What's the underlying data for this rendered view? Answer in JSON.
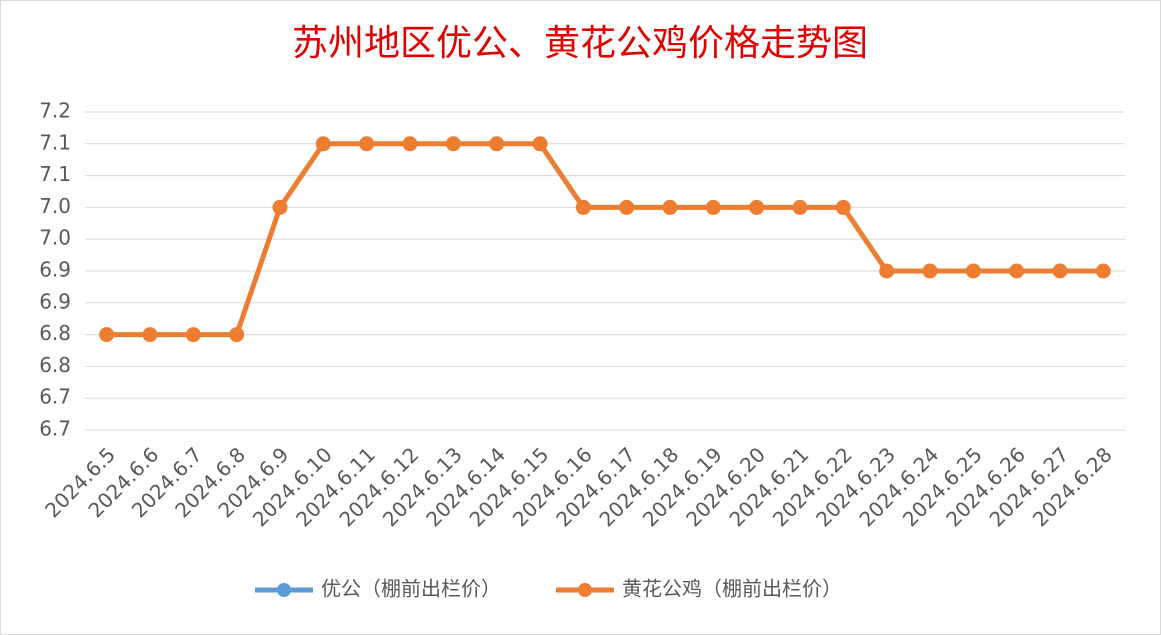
{
  "chart_data": {
    "type": "line",
    "title": "苏州地区优公、黄花公鸡价格走势图",
    "categories": [
      "2024.6.5",
      "2024.6.6",
      "2024.6.7",
      "2024.6.8",
      "2024.6.9",
      "2024.6.10",
      "2024.6.11",
      "2024.6.12",
      "2024.6.13",
      "2024.6.14",
      "2024.6.15",
      "2024.6.16",
      "2024.6.17",
      "2024.6.18",
      "2024.6.19",
      "2024.6.20",
      "2024.6.21",
      "2024.6.22",
      "2024.6.23",
      "2024.6.24",
      "2024.6.25",
      "2024.6.26",
      "2024.6.27",
      "2024.6.28"
    ],
    "series": [
      {
        "name": "优公（棚前出栏价）",
        "color": "#5b9bd5",
        "values": [
          null,
          null,
          null,
          null,
          null,
          null,
          null,
          null,
          null,
          null,
          null,
          null,
          null,
          null,
          null,
          null,
          null,
          null,
          null,
          null,
          null,
          null,
          null,
          null
        ]
      },
      {
        "name": "黄花公鸡（棚前出栏价）",
        "color": "#ed7d31",
        "values": [
          6.8,
          6.8,
          6.8,
          6.8,
          7.0,
          7.1,
          7.1,
          7.1,
          7.1,
          7.1,
          7.1,
          7.0,
          7.0,
          7.0,
          7.0,
          7.0,
          7.0,
          7.0,
          6.9,
          6.9,
          6.9,
          6.9,
          6.9,
          6.9
        ]
      }
    ],
    "ylim": [
      6.65,
      7.15
    ],
    "yticks": [
      {
        "value": 6.65,
        "label": "6.7"
      },
      6.7,
      {
        "value": 6.75,
        "label": "6.8"
      },
      6.8,
      {
        "value": 6.85,
        "label": "6.9"
      },
      6.9,
      {
        "value": 6.95,
        "label": "7.0"
      },
      {
        "value": 7.0,
        "label": "7.0"
      },
      {
        "value": 7.05,
        "label": "7.1"
      },
      7.1,
      {
        "value": 7.15,
        "label": "7.2"
      }
    ],
    "grid": true,
    "legend": "bottom"
  }
}
